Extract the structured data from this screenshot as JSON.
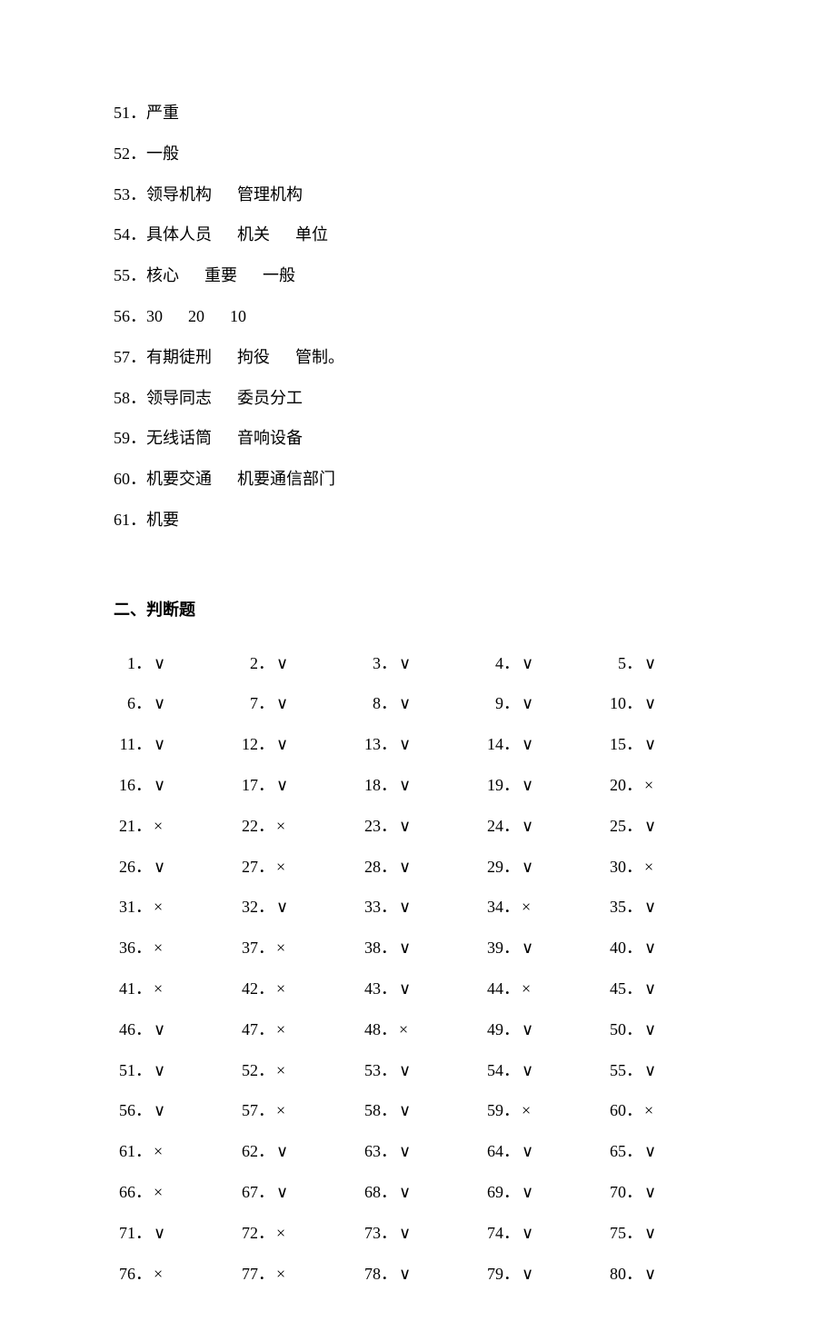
{
  "fill_items": [
    {
      "num": "51．",
      "answers": [
        "严重"
      ]
    },
    {
      "num": "52．",
      "answers": [
        "一般"
      ]
    },
    {
      "num": "53．",
      "answers": [
        "领导机构",
        "管理机构"
      ]
    },
    {
      "num": "54．",
      "answers": [
        "具体人员",
        "机关",
        "单位"
      ]
    },
    {
      "num": "55．",
      "answers": [
        "核心",
        "重要",
        "一般"
      ]
    },
    {
      "num": "56．",
      "answers": [
        "30",
        "20",
        "10"
      ]
    },
    {
      "num": "57．",
      "answers": [
        "有期徒刑",
        "拘役",
        "管制。"
      ]
    },
    {
      "num": "58．",
      "answers": [
        "领导同志",
        "委员分工"
      ]
    },
    {
      "num": "59．",
      "answers": [
        "无线话筒",
        "音响设备"
      ]
    },
    {
      "num": "60．",
      "answers": [
        "机要交通",
        "机要通信部门"
      ]
    },
    {
      "num": "61．",
      "answers": [
        "机要"
      ]
    }
  ],
  "section2_title": "二、判断题",
  "judge_marks": {
    "check": "∨",
    "cross": "×"
  },
  "judge_items": [
    {
      "n": 1,
      "v": "c"
    },
    {
      "n": 2,
      "v": "c"
    },
    {
      "n": 3,
      "v": "c"
    },
    {
      "n": 4,
      "v": "c"
    },
    {
      "n": 5,
      "v": "c"
    },
    {
      "n": 6,
      "v": "c"
    },
    {
      "n": 7,
      "v": "c"
    },
    {
      "n": 8,
      "v": "c"
    },
    {
      "n": 9,
      "v": "c"
    },
    {
      "n": 10,
      "v": "c"
    },
    {
      "n": 11,
      "v": "c"
    },
    {
      "n": 12,
      "v": "c"
    },
    {
      "n": 13,
      "v": "c"
    },
    {
      "n": 14,
      "v": "c"
    },
    {
      "n": 15,
      "v": "c"
    },
    {
      "n": 16,
      "v": "c"
    },
    {
      "n": 17,
      "v": "c"
    },
    {
      "n": 18,
      "v": "c"
    },
    {
      "n": 19,
      "v": "c"
    },
    {
      "n": 20,
      "v": "x"
    },
    {
      "n": 21,
      "v": "x"
    },
    {
      "n": 22,
      "v": "x"
    },
    {
      "n": 23,
      "v": "c"
    },
    {
      "n": 24,
      "v": "c"
    },
    {
      "n": 25,
      "v": "c"
    },
    {
      "n": 26,
      "v": "c"
    },
    {
      "n": 27,
      "v": "x"
    },
    {
      "n": 28,
      "v": "c"
    },
    {
      "n": 29,
      "v": "c"
    },
    {
      "n": 30,
      "v": "x"
    },
    {
      "n": 31,
      "v": "x"
    },
    {
      "n": 32,
      "v": "c"
    },
    {
      "n": 33,
      "v": "c"
    },
    {
      "n": 34,
      "v": "x"
    },
    {
      "n": 35,
      "v": "c"
    },
    {
      "n": 36,
      "v": "x"
    },
    {
      "n": 37,
      "v": "x"
    },
    {
      "n": 38,
      "v": "c"
    },
    {
      "n": 39,
      "v": "c"
    },
    {
      "n": 40,
      "v": "c"
    },
    {
      "n": 41,
      "v": "x"
    },
    {
      "n": 42,
      "v": "x"
    },
    {
      "n": 43,
      "v": "c"
    },
    {
      "n": 44,
      "v": "x"
    },
    {
      "n": 45,
      "v": "c"
    },
    {
      "n": 46,
      "v": "c"
    },
    {
      "n": 47,
      "v": "x"
    },
    {
      "n": 48,
      "v": "x"
    },
    {
      "n": 49,
      "v": "c"
    },
    {
      "n": 50,
      "v": "c"
    },
    {
      "n": 51,
      "v": "c"
    },
    {
      "n": 52,
      "v": "x"
    },
    {
      "n": 53,
      "v": "c"
    },
    {
      "n": 54,
      "v": "c"
    },
    {
      "n": 55,
      "v": "c"
    },
    {
      "n": 56,
      "v": "c"
    },
    {
      "n": 57,
      "v": "x"
    },
    {
      "n": 58,
      "v": "c"
    },
    {
      "n": 59,
      "v": "x"
    },
    {
      "n": 60,
      "v": "x"
    },
    {
      "n": 61,
      "v": "x"
    },
    {
      "n": 62,
      "v": "c"
    },
    {
      "n": 63,
      "v": "c"
    },
    {
      "n": 64,
      "v": "c"
    },
    {
      "n": 65,
      "v": "c"
    },
    {
      "n": 66,
      "v": "x"
    },
    {
      "n": 67,
      "v": "c"
    },
    {
      "n": 68,
      "v": "c"
    },
    {
      "n": 69,
      "v": "c"
    },
    {
      "n": 70,
      "v": "c"
    },
    {
      "n": 71,
      "v": "c"
    },
    {
      "n": 72,
      "v": "x"
    },
    {
      "n": 73,
      "v": "c"
    },
    {
      "n": 74,
      "v": "c"
    },
    {
      "n": 75,
      "v": "c"
    },
    {
      "n": 76,
      "v": "x"
    },
    {
      "n": 77,
      "v": "x"
    },
    {
      "n": 78,
      "v": "c"
    },
    {
      "n": 79,
      "v": "c"
    },
    {
      "n": 80,
      "v": "c"
    }
  ]
}
